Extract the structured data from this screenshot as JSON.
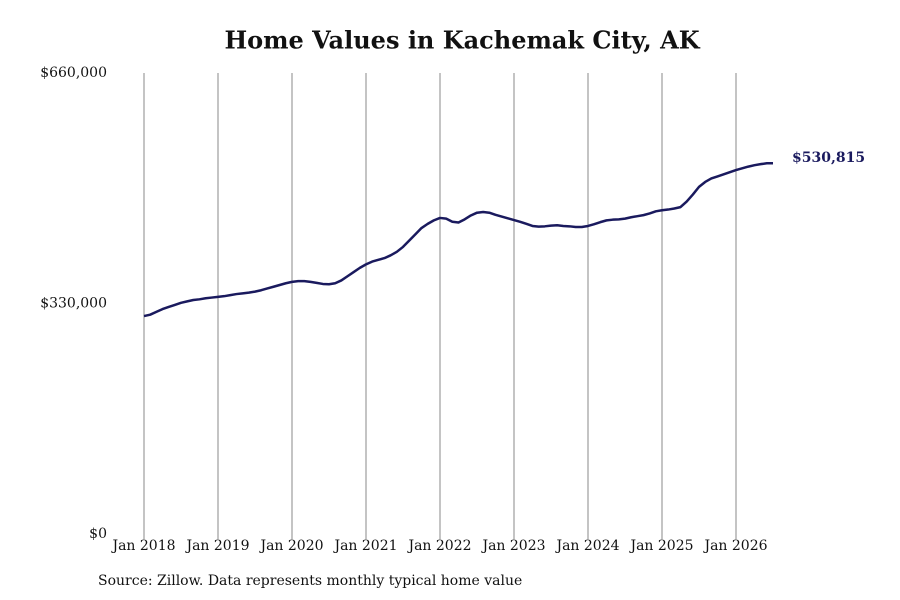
{
  "chart_data": {
    "type": "line",
    "title": "Home Values in Kachemak City, AK",
    "source": "Source: Zillow. Data represents monthly typical home value",
    "annotation": "$530,815",
    "x": [
      "2018-01",
      "2018-02",
      "2018-03",
      "2018-04",
      "2018-05",
      "2018-06",
      "2018-07",
      "2018-08",
      "2018-09",
      "2018-10",
      "2018-11",
      "2018-12",
      "2019-01",
      "2019-02",
      "2019-03",
      "2019-04",
      "2019-05",
      "2019-06",
      "2019-07",
      "2019-08",
      "2019-09",
      "2019-10",
      "2019-11",
      "2019-12",
      "2020-01",
      "2020-02",
      "2020-03",
      "2020-04",
      "2020-05",
      "2020-06",
      "2020-07",
      "2020-08",
      "2020-09",
      "2020-10",
      "2020-11",
      "2020-12",
      "2021-01",
      "2021-02",
      "2021-03",
      "2021-04",
      "2021-05",
      "2021-06",
      "2021-07",
      "2021-08",
      "2021-09",
      "2021-10",
      "2021-11",
      "2021-12",
      "2022-01",
      "2022-02",
      "2022-03",
      "2022-04",
      "2022-05",
      "2022-06",
      "2022-07",
      "2022-08",
      "2022-09",
      "2022-10",
      "2022-11",
      "2022-12",
      "2023-01",
      "2023-02",
      "2023-03",
      "2023-04",
      "2023-05",
      "2023-06",
      "2023-07",
      "2023-08",
      "2023-09",
      "2023-10",
      "2023-11",
      "2023-12",
      "2024-01",
      "2024-02",
      "2024-03",
      "2024-04",
      "2024-05",
      "2024-06",
      "2024-07",
      "2024-08",
      "2024-09",
      "2024-10",
      "2024-11",
      "2024-12",
      "2025-01",
      "2025-02",
      "2025-03",
      "2025-04",
      "2025-05",
      "2025-06",
      "2025-07",
      "2025-08",
      "2025-09",
      "2025-10",
      "2025-11",
      "2025-12",
      "2026-01",
      "2026-02",
      "2026-03",
      "2026-04",
      "2026-05",
      "2026-06",
      "2026-07"
    ],
    "series": [
      {
        "name": "Typical home value",
        "color": "#1a1a5e",
        "values": [
          312000,
          314000,
          318000,
          322000,
          325000,
          328000,
          331000,
          333000,
          335000,
          336000,
          337500,
          338500,
          339500,
          340500,
          342000,
          343500,
          344500,
          345500,
          347000,
          349000,
          351500,
          354000,
          356500,
          359000,
          361000,
          362000,
          362000,
          361000,
          359500,
          358000,
          357500,
          359000,
          363000,
          369000,
          375000,
          381000,
          386000,
          390000,
          392500,
          395000,
          399000,
          404000,
          411000,
          420000,
          429000,
          438000,
          444000,
          449000,
          452500,
          451500,
          447000,
          446000,
          450500,
          456000,
          460000,
          461000,
          460000,
          457000,
          454500,
          452000,
          449500,
          447000,
          444000,
          441000,
          440000,
          440500,
          441500,
          442000,
          441000,
          440500,
          439500,
          439500,
          441000,
          443500,
          446500,
          449000,
          450000,
          450500,
          451500,
          453500,
          455000,
          456500,
          459000,
          462000,
          463500,
          464500,
          466000,
          468000,
          476000,
          486000,
          497000,
          504000,
          509000,
          512000,
          515000,
          518000,
          521000,
          523500,
          526000,
          528000,
          529500,
          530800,
          530815
        ]
      }
    ],
    "xlim": [
      "2018-01",
      "2026-07"
    ],
    "xticks": [
      {
        "value": "2018-01",
        "label": "Jan 2018"
      },
      {
        "value": "2019-01",
        "label": "Jan 2019"
      },
      {
        "value": "2020-01",
        "label": "Jan 2020"
      },
      {
        "value": "2021-01",
        "label": "Jan 2021"
      },
      {
        "value": "2022-01",
        "label": "Jan 2022"
      },
      {
        "value": "2023-01",
        "label": "Jan 2023"
      },
      {
        "value": "2024-01",
        "label": "Jan 2024"
      },
      {
        "value": "2025-01",
        "label": "Jan 2025"
      },
      {
        "value": "2026-01",
        "label": "Jan 2026"
      }
    ],
    "ylim": [
      0,
      660000
    ],
    "yticks": [
      {
        "value": 0,
        "label": "$0"
      },
      {
        "value": 330000,
        "label": "$330,000"
      },
      {
        "value": 660000,
        "label": "$660,000"
      }
    ],
    "grid": "x"
  }
}
